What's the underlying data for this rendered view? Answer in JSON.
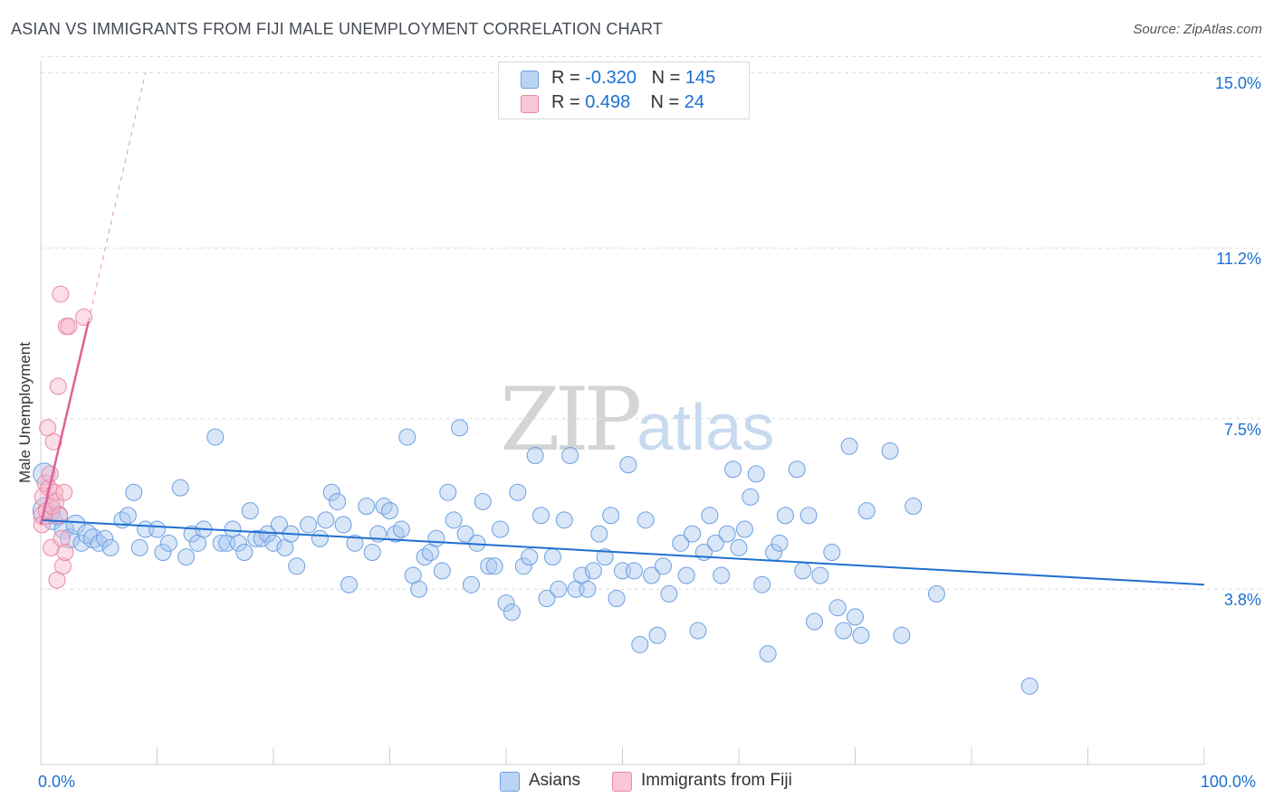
{
  "title": "ASIAN VS IMMIGRANTS FROM FIJI MALE UNEMPLOYMENT CORRELATION CHART",
  "source": "Source: ZipAtlas.com",
  "watermark": {
    "zip": "ZIP",
    "atlas": "atlas"
  },
  "legend": {
    "asians": {
      "r_label": "R = ",
      "r_value": "-0.320",
      "n_label": "N = ",
      "n_value": "145"
    },
    "fiji": {
      "r_label": "R = ",
      "r_value": "0.498",
      "n_label": "N = ",
      "n_value": "24"
    }
  },
  "bottom_legend": {
    "asians": "Asians",
    "fiji": "Immigrants from Fiji"
  },
  "colors": {
    "asians_fill": "#a9c7ef",
    "asians_stroke": "#6d9fe0",
    "asians_line": "#1f6fd0",
    "fiji_fill": "#f7b6c9",
    "fiji_stroke": "#e889a6",
    "fiji_line": "#e0609a",
    "tick_label": "#1a6fd1",
    "grid": "#dcdcdc"
  },
  "axes": {
    "x_min_label": "0.0%",
    "x_max_label": "100.0%",
    "y_ticks": [
      "3.8%",
      "7.5%",
      "11.2%",
      "15.0%"
    ]
  },
  "chart_data": {
    "type": "scatter",
    "ylabel": "Male Unemployment",
    "xlim": [
      0,
      100
    ],
    "ylim": [
      0,
      15.4
    ],
    "y_grid": [
      3.8,
      7.5,
      11.2,
      15.0
    ],
    "grid": true,
    "legend_position": "top-center",
    "series": [
      {
        "name": "Asians",
        "stats": {
          "R": -0.32,
          "N": 145
        },
        "trend": {
          "x": [
            0,
            100
          ],
          "y": [
            5.3,
            3.9
          ]
        },
        "points": [
          {
            "x": 0.3,
            "y": 6.3,
            "s": 3
          },
          {
            "x": 0.5,
            "y": 5.5,
            "s": 4
          },
          {
            "x": 1.0,
            "y": 5.3,
            "s": 2
          },
          {
            "x": 1.5,
            "y": 5.4,
            "s": 2
          },
          {
            "x": 2.0,
            "y": 5.1,
            "s": 2
          },
          {
            "x": 2.5,
            "y": 4.9,
            "s": 2
          },
          {
            "x": 3.0,
            "y": 5.2,
            "s": 2
          },
          {
            "x": 3.5,
            "y": 4.8,
            "s": 1
          },
          {
            "x": 4.0,
            "y": 5.0,
            "s": 2
          },
          {
            "x": 4.5,
            "y": 4.9,
            "s": 2
          },
          {
            "x": 5.0,
            "y": 4.8,
            "s": 1
          },
          {
            "x": 5.5,
            "y": 4.9,
            "s": 1
          },
          {
            "x": 6.0,
            "y": 4.7,
            "s": 1
          },
          {
            "x": 7.0,
            "y": 5.3,
            "s": 1
          },
          {
            "x": 7.5,
            "y": 5.4,
            "s": 1
          },
          {
            "x": 8.0,
            "y": 5.9,
            "s": 1
          },
          {
            "x": 8.5,
            "y": 4.7,
            "s": 1
          },
          {
            "x": 9.0,
            "y": 5.1,
            "s": 1
          },
          {
            "x": 10.0,
            "y": 5.1,
            "s": 1
          },
          {
            "x": 10.5,
            "y": 4.6,
            "s": 1
          },
          {
            "x": 11.0,
            "y": 4.8,
            "s": 1
          },
          {
            "x": 12.0,
            "y": 6.0,
            "s": 1
          },
          {
            "x": 12.5,
            "y": 4.5,
            "s": 1
          },
          {
            "x": 13.0,
            "y": 5.0,
            "s": 1
          },
          {
            "x": 13.5,
            "y": 4.8,
            "s": 1
          },
          {
            "x": 14.0,
            "y": 5.1,
            "s": 1
          },
          {
            "x": 15.0,
            "y": 7.1,
            "s": 1
          },
          {
            "x": 15.5,
            "y": 4.8,
            "s": 1
          },
          {
            "x": 16.0,
            "y": 4.8,
            "s": 1
          },
          {
            "x": 16.5,
            "y": 5.1,
            "s": 1
          },
          {
            "x": 17.0,
            "y": 4.8,
            "s": 1
          },
          {
            "x": 17.5,
            "y": 4.6,
            "s": 1
          },
          {
            "x": 18.0,
            "y": 5.5,
            "s": 1
          },
          {
            "x": 18.5,
            "y": 4.9,
            "s": 1
          },
          {
            "x": 19.0,
            "y": 4.9,
            "s": 1
          },
          {
            "x": 19.5,
            "y": 5.0,
            "s": 1
          },
          {
            "x": 20.0,
            "y": 4.8,
            "s": 1
          },
          {
            "x": 20.5,
            "y": 5.2,
            "s": 1
          },
          {
            "x": 21.0,
            "y": 4.7,
            "s": 1
          },
          {
            "x": 21.5,
            "y": 5.0,
            "s": 1
          },
          {
            "x": 22.0,
            "y": 4.3,
            "s": 1
          },
          {
            "x": 23.0,
            "y": 5.2,
            "s": 1
          },
          {
            "x": 24.0,
            "y": 4.9,
            "s": 1
          },
          {
            "x": 24.5,
            "y": 5.3,
            "s": 1
          },
          {
            "x": 25.0,
            "y": 5.9,
            "s": 1
          },
          {
            "x": 25.5,
            "y": 5.7,
            "s": 1
          },
          {
            "x": 26.0,
            "y": 5.2,
            "s": 1
          },
          {
            "x": 26.5,
            "y": 3.9,
            "s": 1
          },
          {
            "x": 27.0,
            "y": 4.8,
            "s": 1
          },
          {
            "x": 28.0,
            "y": 5.6,
            "s": 1
          },
          {
            "x": 28.5,
            "y": 4.6,
            "s": 1
          },
          {
            "x": 29.0,
            "y": 5.0,
            "s": 1
          },
          {
            "x": 29.5,
            "y": 5.6,
            "s": 1
          },
          {
            "x": 30.0,
            "y": 5.5,
            "s": 1
          },
          {
            "x": 30.5,
            "y": 5.0,
            "s": 1
          },
          {
            "x": 31.0,
            "y": 5.1,
            "s": 1
          },
          {
            "x": 31.5,
            "y": 7.1,
            "s": 1
          },
          {
            "x": 32.0,
            "y": 4.1,
            "s": 1
          },
          {
            "x": 32.5,
            "y": 3.8,
            "s": 1
          },
          {
            "x": 33.0,
            "y": 4.5,
            "s": 1
          },
          {
            "x": 33.5,
            "y": 4.6,
            "s": 1
          },
          {
            "x": 34.0,
            "y": 4.9,
            "s": 1
          },
          {
            "x": 34.5,
            "y": 4.2,
            "s": 1
          },
          {
            "x": 35.0,
            "y": 5.9,
            "s": 1
          },
          {
            "x": 35.5,
            "y": 5.3,
            "s": 1
          },
          {
            "x": 36.0,
            "y": 7.3,
            "s": 1
          },
          {
            "x": 36.5,
            "y": 5.0,
            "s": 1
          },
          {
            "x": 37.0,
            "y": 3.9,
            "s": 1
          },
          {
            "x": 37.5,
            "y": 4.8,
            "s": 1
          },
          {
            "x": 38.0,
            "y": 5.7,
            "s": 1
          },
          {
            "x": 38.5,
            "y": 4.3,
            "s": 1
          },
          {
            "x": 39.0,
            "y": 4.3,
            "s": 1
          },
          {
            "x": 39.5,
            "y": 5.1,
            "s": 1
          },
          {
            "x": 40.0,
            "y": 3.5,
            "s": 1
          },
          {
            "x": 40.5,
            "y": 3.3,
            "s": 1
          },
          {
            "x": 41.0,
            "y": 5.9,
            "s": 1
          },
          {
            "x": 41.5,
            "y": 4.3,
            "s": 1
          },
          {
            "x": 42.0,
            "y": 4.5,
            "s": 1
          },
          {
            "x": 42.5,
            "y": 6.7,
            "s": 1
          },
          {
            "x": 43.0,
            "y": 5.4,
            "s": 1
          },
          {
            "x": 43.5,
            "y": 3.6,
            "s": 1
          },
          {
            "x": 44.0,
            "y": 4.5,
            "s": 1
          },
          {
            "x": 44.5,
            "y": 3.8,
            "s": 1
          },
          {
            "x": 45.0,
            "y": 5.3,
            "s": 1
          },
          {
            "x": 45.5,
            "y": 6.7,
            "s": 1
          },
          {
            "x": 46.0,
            "y": 3.8,
            "s": 1
          },
          {
            "x": 46.5,
            "y": 4.1,
            "s": 1
          },
          {
            "x": 47.0,
            "y": 3.8,
            "s": 1
          },
          {
            "x": 47.5,
            "y": 4.2,
            "s": 1
          },
          {
            "x": 48.0,
            "y": 5.0,
            "s": 1
          },
          {
            "x": 48.5,
            "y": 4.5,
            "s": 1
          },
          {
            "x": 49.0,
            "y": 5.4,
            "s": 1
          },
          {
            "x": 49.5,
            "y": 3.6,
            "s": 1
          },
          {
            "x": 50.0,
            "y": 4.2,
            "s": 1
          },
          {
            "x": 50.5,
            "y": 6.5,
            "s": 1
          },
          {
            "x": 51.0,
            "y": 4.2,
            "s": 1
          },
          {
            "x": 51.5,
            "y": 2.6,
            "s": 1
          },
          {
            "x": 52.0,
            "y": 5.3,
            "s": 1
          },
          {
            "x": 52.5,
            "y": 4.1,
            "s": 1
          },
          {
            "x": 53.0,
            "y": 2.8,
            "s": 1
          },
          {
            "x": 53.5,
            "y": 4.3,
            "s": 1
          },
          {
            "x": 54.0,
            "y": 3.7,
            "s": 1
          },
          {
            "x": 55.0,
            "y": 4.8,
            "s": 1
          },
          {
            "x": 55.5,
            "y": 4.1,
            "s": 1
          },
          {
            "x": 56.0,
            "y": 5.0,
            "s": 1
          },
          {
            "x": 56.5,
            "y": 2.9,
            "s": 1
          },
          {
            "x": 57.0,
            "y": 4.6,
            "s": 1
          },
          {
            "x": 57.5,
            "y": 5.4,
            "s": 1
          },
          {
            "x": 58.0,
            "y": 4.8,
            "s": 1
          },
          {
            "x": 58.5,
            "y": 4.1,
            "s": 1
          },
          {
            "x": 59.0,
            "y": 5.0,
            "s": 1
          },
          {
            "x": 59.5,
            "y": 6.4,
            "s": 1
          },
          {
            "x": 60.0,
            "y": 4.7,
            "s": 1
          },
          {
            "x": 60.5,
            "y": 5.1,
            "s": 1
          },
          {
            "x": 61.0,
            "y": 5.8,
            "s": 1
          },
          {
            "x": 61.5,
            "y": 6.3,
            "s": 1
          },
          {
            "x": 62.0,
            "y": 3.9,
            "s": 1
          },
          {
            "x": 62.5,
            "y": 2.4,
            "s": 1
          },
          {
            "x": 63.0,
            "y": 4.6,
            "s": 1
          },
          {
            "x": 63.5,
            "y": 4.8,
            "s": 1
          },
          {
            "x": 64.0,
            "y": 5.4,
            "s": 1
          },
          {
            "x": 65.0,
            "y": 6.4,
            "s": 1
          },
          {
            "x": 65.5,
            "y": 4.2,
            "s": 1
          },
          {
            "x": 66.0,
            "y": 5.4,
            "s": 1
          },
          {
            "x": 66.5,
            "y": 3.1,
            "s": 1
          },
          {
            "x": 67.0,
            "y": 4.1,
            "s": 1
          },
          {
            "x": 68.0,
            "y": 4.6,
            "s": 1
          },
          {
            "x": 68.5,
            "y": 3.4,
            "s": 1
          },
          {
            "x": 69.0,
            "y": 2.9,
            "s": 1
          },
          {
            "x": 69.5,
            "y": 6.9,
            "s": 1
          },
          {
            "x": 70.0,
            "y": 3.2,
            "s": 1
          },
          {
            "x": 70.5,
            "y": 2.8,
            "s": 1
          },
          {
            "x": 71.0,
            "y": 5.5,
            "s": 1
          },
          {
            "x": 73.0,
            "y": 6.8,
            "s": 1
          },
          {
            "x": 74.0,
            "y": 2.8,
            "s": 1
          },
          {
            "x": 75.0,
            "y": 5.6,
            "s": 1
          },
          {
            "x": 77.0,
            "y": 3.7,
            "s": 1
          },
          {
            "x": 85.0,
            "y": 1.7,
            "s": 1
          }
        ]
      },
      {
        "name": "Immigrants from Fiji",
        "stats": {
          "R": 0.498,
          "N": 24
        },
        "trend": {
          "x": [
            0,
            4.1
          ],
          "y": [
            5.2,
            9.6
          ]
        },
        "trend_dashed": {
          "x": [
            4.1,
            9.0
          ],
          "y": [
            9.6,
            15.0
          ]
        },
        "points": [
          {
            "x": 0.2,
            "y": 5.4,
            "s": 2
          },
          {
            "x": 0.3,
            "y": 5.8,
            "s": 2
          },
          {
            "x": 0.4,
            "y": 6.1,
            "s": 1
          },
          {
            "x": 0.5,
            "y": 5.5,
            "s": 1
          },
          {
            "x": 0.6,
            "y": 7.3,
            "s": 1
          },
          {
            "x": 0.7,
            "y": 6.0,
            "s": 1
          },
          {
            "x": 0.8,
            "y": 6.3,
            "s": 1
          },
          {
            "x": 0.9,
            "y": 4.7,
            "s": 1
          },
          {
            "x": 1.0,
            "y": 5.6,
            "s": 1
          },
          {
            "x": 1.1,
            "y": 7.0,
            "s": 1
          },
          {
            "x": 1.2,
            "y": 5.9,
            "s": 1
          },
          {
            "x": 1.3,
            "y": 5.7,
            "s": 1
          },
          {
            "x": 1.4,
            "y": 4.0,
            "s": 1
          },
          {
            "x": 1.5,
            "y": 8.2,
            "s": 1
          },
          {
            "x": 1.6,
            "y": 5.4,
            "s": 1
          },
          {
            "x": 1.7,
            "y": 10.2,
            "s": 1
          },
          {
            "x": 1.8,
            "y": 4.9,
            "s": 1
          },
          {
            "x": 1.9,
            "y": 4.3,
            "s": 1
          },
          {
            "x": 2.0,
            "y": 5.9,
            "s": 1
          },
          {
            "x": 2.1,
            "y": 4.6,
            "s": 1
          },
          {
            "x": 2.2,
            "y": 9.5,
            "s": 1
          },
          {
            "x": 2.4,
            "y": 9.5,
            "s": 1
          },
          {
            "x": 3.7,
            "y": 9.7,
            "s": 1
          },
          {
            "x": 0.1,
            "y": 5.2,
            "s": 1
          }
        ]
      }
    ]
  }
}
